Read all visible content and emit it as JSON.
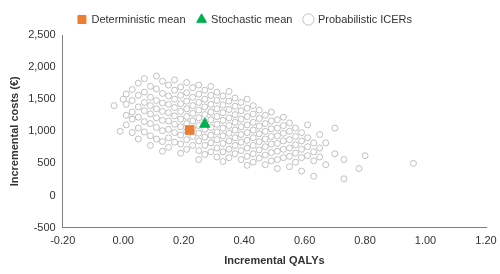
{
  "chart_data": {
    "type": "scatter",
    "x_label": "Incremental QALYs",
    "y_label": "Incremental costs (€)",
    "xlim": [
      -0.2,
      1.2
    ],
    "xticks": [
      {
        "value": -0.2,
        "label": "-0.20"
      },
      {
        "value": 0,
        "label": "0.00"
      },
      {
        "value": 0.2,
        "label": "0.20"
      },
      {
        "value": 0.4,
        "label": "0.40"
      },
      {
        "value": 0.6,
        "label": "0.60"
      },
      {
        "value": 0.8,
        "label": "0.80"
      },
      {
        "value": 1.0,
        "label": "1.00"
      },
      {
        "value": 1.2,
        "label": "1.20"
      }
    ],
    "ylim": [
      -500,
      2500
    ],
    "yticks": [
      -500,
      0,
      500,
      {
        "value": 1000,
        "label": "1,000"
      },
      {
        "value": 1500,
        "label": "1,500"
      },
      {
        "value": 2000,
        "label": "2,000"
      },
      {
        "value": 2500,
        "label": "2,500"
      }
    ],
    "grid": false,
    "legend": "top",
    "series": [
      {
        "name": "Probabilistic ICERs",
        "color": "#bfbfbf",
        "marker": "circle_open",
        "x": [
          -0.03,
          -0.01,
          0.0,
          0.01,
          0.01,
          0.01,
          0.01,
          0.03,
          0.03,
          0.03,
          0.03,
          0.03,
          0.05,
          0.05,
          0.05,
          0.05,
          0.05,
          0.05,
          0.07,
          0.07,
          0.07,
          0.07,
          0.07,
          0.07,
          0.09,
          0.09,
          0.09,
          0.09,
          0.09,
          0.09,
          0.09,
          0.11,
          0.11,
          0.11,
          0.11,
          0.11,
          0.11,
          0.11,
          0.13,
          0.13,
          0.13,
          0.13,
          0.13,
          0.13,
          0.13,
          0.13,
          0.15,
          0.15,
          0.15,
          0.15,
          0.15,
          0.15,
          0.15,
          0.15,
          0.17,
          0.17,
          0.17,
          0.17,
          0.17,
          0.17,
          0.17,
          0.17,
          0.19,
          0.19,
          0.19,
          0.19,
          0.19,
          0.19,
          0.19,
          0.19,
          0.19,
          0.21,
          0.21,
          0.21,
          0.21,
          0.21,
          0.21,
          0.21,
          0.21,
          0.21,
          0.23,
          0.23,
          0.23,
          0.23,
          0.23,
          0.23,
          0.23,
          0.23,
          0.25,
          0.25,
          0.25,
          0.25,
          0.25,
          0.25,
          0.25,
          0.25,
          0.25,
          0.25,
          0.27,
          0.27,
          0.27,
          0.27,
          0.27,
          0.27,
          0.27,
          0.27,
          0.27,
          0.29,
          0.29,
          0.29,
          0.29,
          0.29,
          0.29,
          0.29,
          0.29,
          0.29,
          0.31,
          0.31,
          0.31,
          0.31,
          0.31,
          0.31,
          0.31,
          0.31,
          0.31,
          0.33,
          0.33,
          0.33,
          0.33,
          0.33,
          0.33,
          0.33,
          0.33,
          0.33,
          0.35,
          0.35,
          0.35,
          0.35,
          0.35,
          0.35,
          0.35,
          0.35,
          0.35,
          0.37,
          0.37,
          0.37,
          0.37,
          0.37,
          0.37,
          0.37,
          0.37,
          0.39,
          0.39,
          0.39,
          0.39,
          0.39,
          0.39,
          0.39,
          0.39,
          0.41,
          0.41,
          0.41,
          0.41,
          0.41,
          0.41,
          0.41,
          0.41,
          0.41,
          0.43,
          0.43,
          0.43,
          0.43,
          0.43,
          0.43,
          0.43,
          0.43,
          0.45,
          0.45,
          0.45,
          0.45,
          0.45,
          0.45,
          0.45,
          0.47,
          0.47,
          0.47,
          0.47,
          0.47,
          0.47,
          0.47,
          0.49,
          0.49,
          0.49,
          0.49,
          0.49,
          0.49,
          0.49,
          0.51,
          0.51,
          0.51,
          0.51,
          0.51,
          0.51,
          0.51,
          0.53,
          0.53,
          0.53,
          0.53,
          0.53,
          0.53,
          0.55,
          0.55,
          0.55,
          0.55,
          0.55,
          0.55,
          0.57,
          0.57,
          0.57,
          0.57,
          0.57,
          0.59,
          0.59,
          0.59,
          0.59,
          0.59,
          0.61,
          0.61,
          0.61,
          0.61,
          0.63,
          0.63,
          0.63,
          0.63,
          0.65,
          0.65,
          0.65,
          0.67,
          0.67,
          0.7,
          0.7,
          0.73,
          0.73,
          0.78,
          0.8,
          0.96
        ],
        "values": [
          1400,
          1000,
          1500,
          1250,
          1420,
          1580,
          1100,
          1650,
          1300,
          1480,
          980,
          1190,
          1750,
          1560,
          1380,
          1220,
          1050,
          880,
          1820,
          1610,
          1450,
          1320,
          1150,
          990,
          1700,
          1530,
          1400,
          1270,
          1120,
          930,
          780,
          1860,
          1660,
          1480,
          1350,
          1210,
          1060,
          880,
          1780,
          1590,
          1440,
          1310,
          1170,
          1010,
          840,
          690,
          1720,
          1550,
          1420,
          1290,
          1160,
          1030,
          900,
          750,
          1800,
          1640,
          1500,
          1370,
          1240,
          1110,
          980,
          830,
          1690,
          1560,
          1430,
          1310,
          1190,
          1070,
          940,
          800,
          660,
          1760,
          1600,
          1470,
          1350,
          1230,
          1120,
          1000,
          870,
          720,
          1680,
          1530,
          1400,
          1280,
          1160,
          1040,
          920,
          780,
          1720,
          1580,
          1450,
          1330,
          1210,
          1090,
          970,
          850,
          700,
          560,
          1640,
          1500,
          1380,
          1260,
          1150,
          1030,
          910,
          780,
          640,
          1700,
          1560,
          1420,
          1300,
          1180,
          1060,
          940,
          820,
          680,
          1610,
          1480,
          1350,
          1230,
          1110,
          990,
          870,
          740,
          600,
          1550,
          1410,
          1290,
          1170,
          1050,
          930,
          810,
          680,
          530,
          1620,
          1470,
          1340,
          1210,
          1090,
          970,
          850,
          720,
          590,
          1520,
          1390,
          1260,
          1140,
          1020,
          900,
          780,
          650,
          1450,
          1320,
          1190,
          1070,
          950,
          830,
          700,
          560,
          1500,
          1360,
          1230,
          1100,
          980,
          860,
          740,
          610,
          470,
          1400,
          1270,
          1140,
          1020,
          900,
          780,
          650,
          520,
          1330,
          1200,
          1080,
          960,
          840,
          710,
          580,
          1250,
          1120,
          1000,
          880,
          760,
          630,
          480,
          1300,
          1160,
          1040,
          920,
          800,
          670,
          540,
          1180,
          1050,
          930,
          810,
          690,
          560,
          420,
          1220,
          1090,
          970,
          850,
          720,
          590,
          1130,
          1000,
          870,
          740,
          610,
          450,
          1050,
          920,
          790,
          660,
          520,
          980,
          850,
          720,
          590,
          380,
          1100,
          900,
          760,
          620,
          820,
          680,
          540,
          300,
          950,
          740,
          600,
          820,
          480,
          1050,
          650,
          560,
          260,
          420,
          620,
          500
        ]
      },
      {
        "name": "Deterministic mean",
        "color": "#ed7d31",
        "marker": "square",
        "x": [
          0.22
        ],
        "values": [
          1020
        ]
      },
      {
        "name": "Stochastic mean",
        "color": "#00b050",
        "marker": "triangle",
        "x": [
          0.27
        ],
        "values": [
          1110
        ]
      }
    ]
  }
}
